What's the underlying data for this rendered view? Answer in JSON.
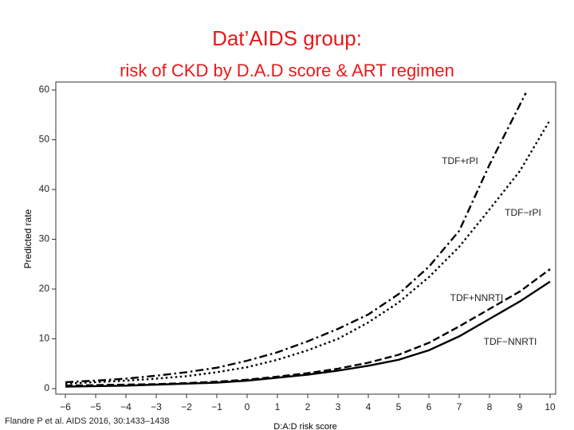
{
  "chart_data": {
    "type": "line",
    "title": "Dat’AIDS group:",
    "subtitle": "risk of CKD by D.A.D score & ART regimen",
    "y_label": "Predicted rate",
    "x_label": "D:A:D risk score",
    "citation": "Flandre P et al. AIDS 2016, 30:1433–1438",
    "series": [
      {
        "name": "TDF+rPI",
        "color": "#000000",
        "dash": "dashdot",
        "x": [
          -6,
          -5,
          -4,
          -3,
          -2,
          -1,
          0,
          1,
          2,
          3,
          4,
          5,
          6,
          7,
          8,
          9,
          9.2
        ],
        "values": [
          1.3,
          1.6,
          2.0,
          2.6,
          3.3,
          4.2,
          5.6,
          7.3,
          9.5,
          12,
          14.9,
          19,
          24.5,
          31.7,
          45,
          57,
          59.4
        ]
      },
      {
        "name": "TDF−rPI",
        "color": "#000000",
        "dash": "dotted",
        "x": [
          -6,
          -5,
          -4,
          -3,
          -2,
          -1,
          0,
          1,
          2,
          3,
          4,
          5,
          6,
          7,
          8,
          9,
          10
        ],
        "values": [
          1.0,
          1.3,
          1.6,
          2.0,
          2.5,
          3.3,
          4.3,
          5.8,
          7.7,
          10,
          13.3,
          17.3,
          22.4,
          28.5,
          36,
          43.7,
          54
        ]
      },
      {
        "name": "TDF+NNRTI",
        "color": "#000000",
        "dash": "dashed",
        "x": [
          -6,
          -5,
          -4,
          -3,
          -2,
          -1,
          0,
          1,
          2,
          3,
          4,
          5,
          6,
          7,
          8,
          9,
          10
        ],
        "values": [
          0.6,
          0.7,
          0.8,
          0.9,
          1.1,
          1.4,
          1.8,
          2.4,
          3.1,
          4.0,
          5.2,
          6.8,
          9.2,
          12.5,
          16,
          19.5,
          24
        ]
      },
      {
        "name": "TDF−NNRTI",
        "color": "#000000",
        "dash": "solid",
        "x": [
          -6,
          -5,
          -4,
          -3,
          -2,
          -1,
          0,
          1,
          2,
          3,
          4,
          5,
          6,
          7,
          8,
          9,
          10
        ],
        "values": [
          0.4,
          0.5,
          0.6,
          0.8,
          1.0,
          1.2,
          1.6,
          2.2,
          2.8,
          3.6,
          4.6,
          5.8,
          7.7,
          10.5,
          14,
          17.5,
          21.5
        ]
      }
    ],
    "xlim": [
      -6,
      10
    ],
    "xticks": [
      {
        "value": -6,
        "label": "−6"
      },
      {
        "value": -5,
        "label": "−5"
      },
      {
        "value": -4,
        "label": "−4"
      },
      {
        "value": -3,
        "label": "−3"
      },
      {
        "value": -2,
        "label": "−2"
      },
      {
        "value": -1,
        "label": "−1"
      },
      0,
      1,
      2,
      3,
      4,
      5,
      6,
      7,
      8,
      9,
      10
    ],
    "ylim": [
      0,
      60
    ],
    "yticks": [
      0,
      10,
      20,
      30,
      40,
      50,
      60
    ],
    "grid": false,
    "title_color": "#e8191b"
  }
}
